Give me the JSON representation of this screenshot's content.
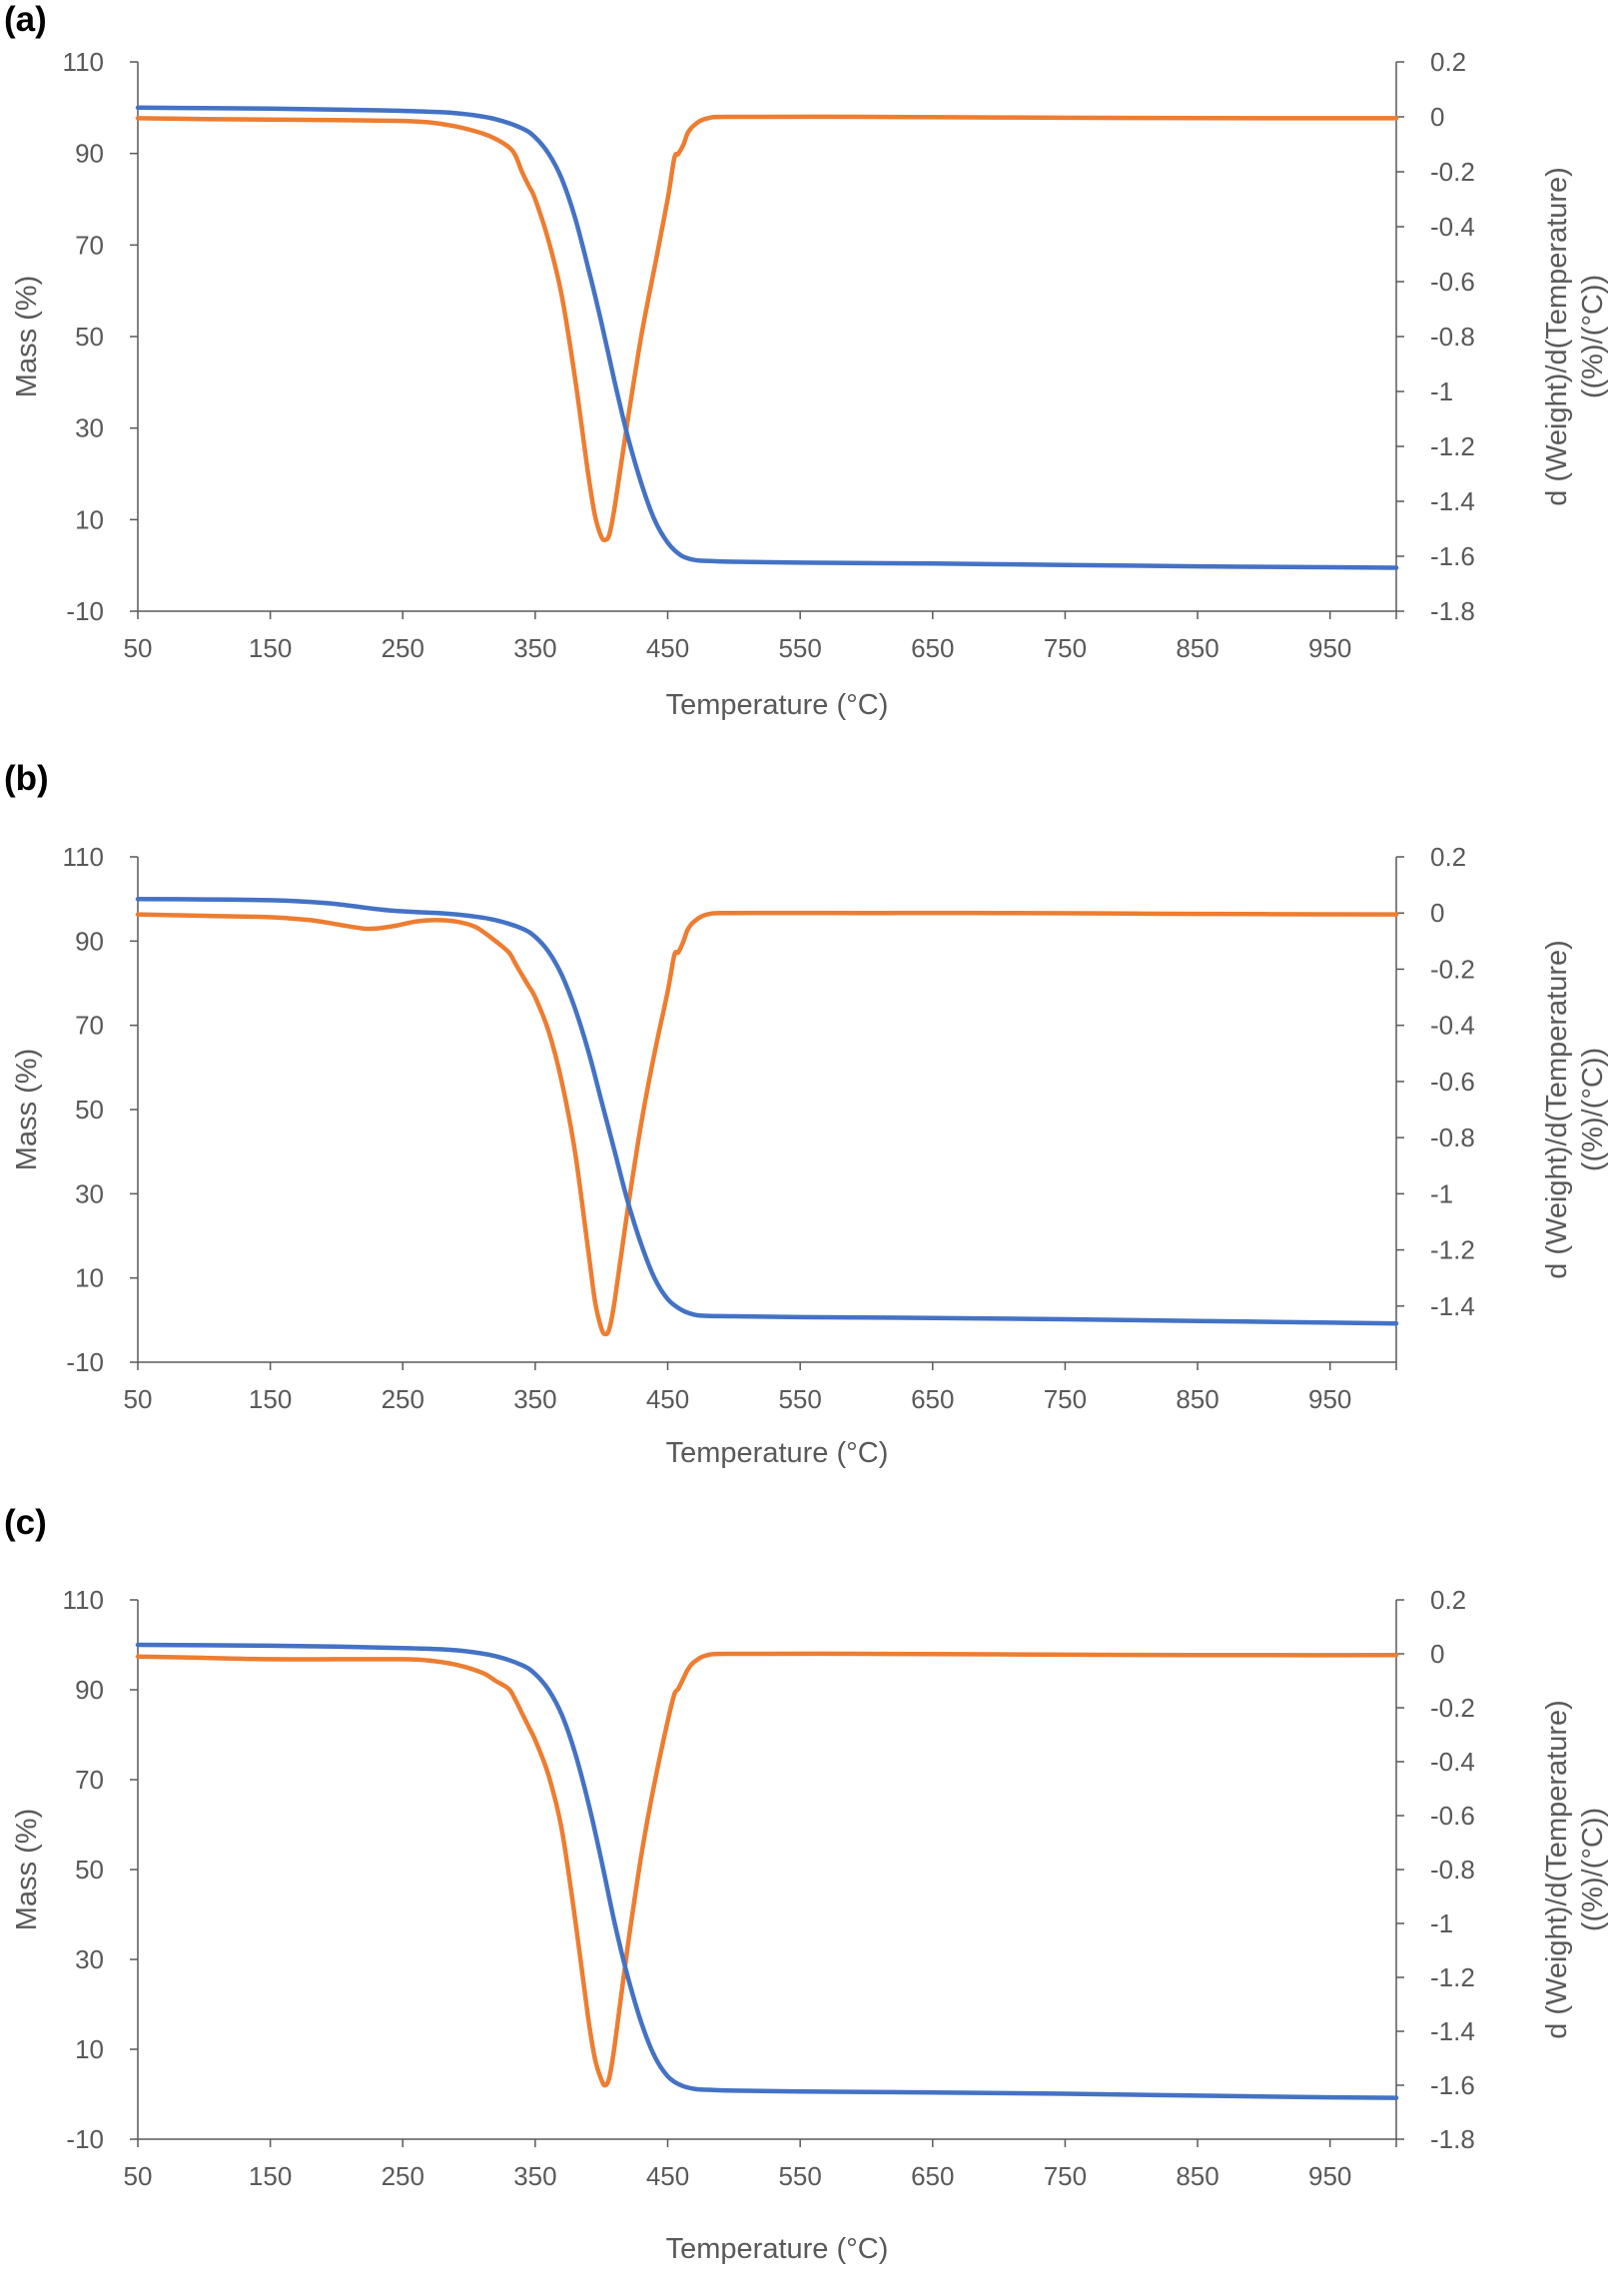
{
  "colors": {
    "mass": "#4472C4",
    "derivative": "#ED7D31",
    "axis": "#595959",
    "grid": "#D9D9D9"
  },
  "chart_data": [
    {
      "panel_label": "(a)",
      "type": "line",
      "xlabel": "Temperature (°C)",
      "ylabel": "Mass (%)",
      "y2label": [
        "d (Weight)/d(Temperature)",
        "((%)/(°C))"
      ],
      "xlim": [
        50,
        1000
      ],
      "ylim": [
        -10,
        110
      ],
      "y2lim": [
        -1.8,
        0.2
      ],
      "x_ticks": [
        "50",
        "150",
        "250",
        "350",
        "450",
        "550",
        "650",
        "750",
        "850",
        "950"
      ],
      "y_ticks": [
        "110",
        "90",
        "70",
        "50",
        "30",
        "10",
        "-10"
      ],
      "y2_ticks": [
        "0.2",
        "0",
        "-0.2",
        "-0.4",
        "-0.6",
        "-0.8",
        "-1",
        "-1.2",
        "-1.4",
        "-1.6",
        "-1.8"
      ],
      "series": [
        {
          "name": "Mass (%)",
          "axis": "left",
          "color": "#4472C4",
          "x": [
            50,
            100,
            150,
            200,
            250,
            280,
            300,
            320,
            340,
            350,
            360,
            370,
            380,
            390,
            400,
            410,
            420,
            430,
            440,
            450,
            460,
            470,
            480,
            500,
            550,
            650,
            750,
            850,
            950,
            1000
          ],
          "y": [
            100,
            99.9,
            99.8,
            99.6,
            99.3,
            99,
            98.5,
            97.5,
            95.5,
            93.5,
            90,
            84.5,
            76,
            65,
            53,
            40,
            28,
            18,
            10,
            5,
            2.2,
            1.2,
            1,
            0.8,
            0.6,
            0.4,
            0.1,
            -0.2,
            -0.4,
            -0.5
          ]
        },
        {
          "name": "d (Weight)/d(Temperature)",
          "axis": "right",
          "color": "#ED7D31",
          "x": [
            50,
            100,
            150,
            200,
            250,
            270,
            290,
            310,
            320,
            330,
            335,
            340,
            345,
            350,
            360,
            370,
            380,
            390,
            395,
            400,
            403,
            406,
            410,
            420,
            430,
            440,
            450,
            455,
            458,
            462,
            465,
            470,
            480,
            500,
            600,
            700,
            800,
            900,
            1000
          ],
          "y": [
            -0.005,
            -0.008,
            -0.01,
            -0.012,
            -0.015,
            -0.02,
            -0.035,
            -0.06,
            -0.08,
            -0.11,
            -0.14,
            -0.2,
            -0.25,
            -0.3,
            -0.45,
            -0.65,
            -0.95,
            -1.3,
            -1.45,
            -1.53,
            -1.54,
            -1.52,
            -1.42,
            -1.1,
            -0.8,
            -0.55,
            -0.3,
            -0.15,
            -0.135,
            -0.1,
            -0.06,
            -0.03,
            -0.005,
            0,
            0,
            -0.002,
            -0.004,
            -0.005,
            -0.005
          ]
        }
      ]
    },
    {
      "panel_label": "(b)",
      "type": "line",
      "xlabel": "Temperature (°C)",
      "ylabel": "Mass (%)",
      "y2label": [
        "d (Weight)/d(Temperature)",
        "((%)/(°C))"
      ],
      "xlim": [
        50,
        1000
      ],
      "ylim": [
        -10,
        110
      ],
      "y2lim": [
        -1.6,
        0.2
      ],
      "x_ticks": [
        "50",
        "150",
        "250",
        "350",
        "450",
        "550",
        "650",
        "750",
        "850",
        "950"
      ],
      "y_ticks": [
        "110",
        "90",
        "70",
        "50",
        "30",
        "10",
        "-10"
      ],
      "y2_ticks": [
        "0.2",
        "0",
        "-0.2",
        "-0.4",
        "-0.6",
        "-0.8",
        "-1",
        "-1.2",
        "-1.4"
      ],
      "series": [
        {
          "name": "Mass (%)",
          "axis": "left",
          "color": "#4472C4",
          "x": [
            50,
            100,
            150,
            180,
            200,
            220,
            240,
            260,
            280,
            300,
            320,
            340,
            350,
            360,
            370,
            380,
            390,
            400,
            410,
            420,
            430,
            440,
            450,
            460,
            470,
            480,
            500,
            550,
            650,
            750,
            850,
            950,
            1000
          ],
          "y": [
            100,
            99.9,
            99.7,
            99.3,
            98.8,
            98,
            97.3,
            96.9,
            96.6,
            96,
            95,
            93,
            91,
            87.5,
            82,
            74,
            64,
            52,
            40,
            28,
            18,
            10,
            5,
            2.5,
            1.3,
            1,
            0.9,
            0.7,
            0.5,
            0.2,
            -0.2,
            -0.6,
            -0.8
          ]
        },
        {
          "name": "d (Weight)/d(Temperature)",
          "axis": "right",
          "color": "#ED7D31",
          "x": [
            50,
            100,
            150,
            180,
            200,
            220,
            230,
            245,
            260,
            275,
            290,
            305,
            320,
            330,
            335,
            340,
            345,
            350,
            360,
            370,
            380,
            390,
            395,
            400,
            403,
            406,
            410,
            420,
            430,
            440,
            450,
            455,
            458,
            462,
            465,
            470,
            480,
            500,
            600,
            700,
            800,
            900,
            1000
          ],
          "y": [
            -0.005,
            -0.01,
            -0.015,
            -0.025,
            -0.04,
            -0.055,
            -0.055,
            -0.045,
            -0.03,
            -0.025,
            -0.03,
            -0.05,
            -0.1,
            -0.14,
            -0.18,
            -0.22,
            -0.26,
            -0.3,
            -0.42,
            -0.6,
            -0.85,
            -1.2,
            -1.38,
            -1.48,
            -1.5,
            -1.48,
            -1.38,
            -1.05,
            -0.75,
            -0.5,
            -0.28,
            -0.15,
            -0.14,
            -0.1,
            -0.06,
            -0.03,
            -0.005,
            0,
            0,
            0,
            -0.002,
            -0.004,
            -0.005
          ]
        }
      ]
    },
    {
      "panel_label": "(c)",
      "type": "line",
      "xlabel": "Temperature (°C)",
      "ylabel": "Mass (%)",
      "y2label": [
        "d (Weight)/d(Temperature)",
        "((%)/(°C))"
      ],
      "xlim": [
        50,
        1000
      ],
      "ylim": [
        -10,
        110
      ],
      "y2lim": [
        -1.8,
        0.2
      ],
      "x_ticks": [
        "50",
        "150",
        "250",
        "350",
        "450",
        "550",
        "650",
        "750",
        "850",
        "950"
      ],
      "y_ticks": [
        "110",
        "90",
        "70",
        "50",
        "30",
        "10",
        "-10"
      ],
      "y2_ticks": [
        "0.2",
        "0",
        "-0.2",
        "-0.4",
        "-0.6",
        "-0.8",
        "-1",
        "-1.2",
        "-1.4",
        "-1.6",
        "-1.8"
      ],
      "series": [
        {
          "name": "Mass (%)",
          "axis": "left",
          "color": "#4472C4",
          "x": [
            50,
            100,
            150,
            200,
            250,
            280,
            300,
            320,
            340,
            350,
            360,
            370,
            380,
            390,
            400,
            410,
            420,
            430,
            440,
            450,
            460,
            470,
            480,
            500,
            550,
            650,
            750,
            850,
            950,
            1000
          ],
          "y": [
            100,
            99.9,
            99.8,
            99.6,
            99.3,
            99,
            98.5,
            97.5,
            95.5,
            93.5,
            90,
            84.5,
            76,
            65,
            52,
            38,
            26,
            16,
            8.5,
            4,
            2,
            1.2,
            1,
            0.8,
            0.6,
            0.4,
            0.1,
            -0.3,
            -0.7,
            -0.8
          ]
        },
        {
          "name": "d (Weight)/d(Temperature)",
          "axis": "right",
          "color": "#ED7D31",
          "x": [
            50,
            100,
            150,
            200,
            250,
            270,
            290,
            310,
            320,
            330,
            335,
            340,
            345,
            350,
            360,
            370,
            380,
            390,
            395,
            400,
            403,
            406,
            410,
            420,
            430,
            440,
            450,
            455,
            458,
            462,
            465,
            470,
            480,
            500,
            600,
            700,
            800,
            900,
            1000
          ],
          "y": [
            -0.01,
            -0.015,
            -0.02,
            -0.02,
            -0.02,
            -0.025,
            -0.04,
            -0.07,
            -0.1,
            -0.13,
            -0.17,
            -0.22,
            -0.27,
            -0.32,
            -0.45,
            -0.65,
            -0.98,
            -1.35,
            -1.5,
            -1.58,
            -1.6,
            -1.57,
            -1.45,
            -1.08,
            -0.75,
            -0.48,
            -0.25,
            -0.15,
            -0.13,
            -0.09,
            -0.06,
            -0.03,
            -0.005,
            0,
            0,
            -0.002,
            -0.004,
            -0.005,
            -0.005
          ]
        }
      ]
    }
  ]
}
